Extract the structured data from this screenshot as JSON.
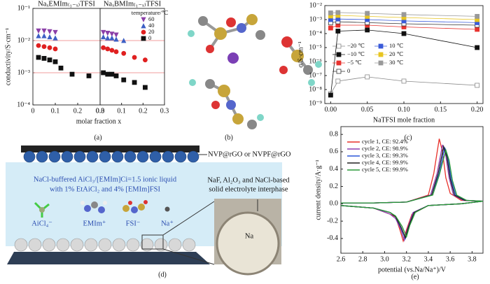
{
  "chart_data": [
    {
      "type": "scatter",
      "panel_label": "(a)",
      "title": "NaₓEMIm₍₁₋ₓ₎TFSI",
      "xlabel": "molar fraction x",
      "ylabel": "conductivity/S·cm⁻¹",
      "log_y": true,
      "grid": true,
      "ylim": [
        0.0001,
        0.1
      ],
      "yticks": [
        {
          "value": 0.0001,
          "label": "10⁻⁴"
        },
        {
          "value": 0.001,
          "label": "10⁻³"
        },
        {
          "value": 0.01,
          "label": "10⁻²"
        },
        {
          "value": 0.1,
          "label": "10⁻¹"
        }
      ],
      "hlines": [
        0.01,
        0.001
      ],
      "hline_color": "#f08080",
      "xlim": [
        0,
        0.3
      ],
      "xticks": [
        0,
        0.1,
        0.2,
        0.3
      ],
      "x": [
        0.025,
        0.05,
        0.075,
        0.1,
        0.125,
        0.175,
        0.25
      ],
      "series": [
        {
          "name": "60",
          "color": "#8b3fa8",
          "marker": "triangle-down",
          "values": [
            0.02,
            0.02,
            0.019,
            0.018,
            null,
            null,
            null
          ]
        },
        {
          "name": "40",
          "color": "#3d5fc4",
          "marker": "triangle-up",
          "values": [
            0.014,
            0.014,
            0.013,
            0.012,
            null,
            null,
            null
          ]
        },
        {
          "name": "20",
          "color": "#e02020",
          "marker": "circle",
          "values": [
            0.007,
            0.0065,
            0.006,
            0.0055,
            null,
            null,
            null
          ]
        },
        {
          "name": "0",
          "color": "#111111",
          "marker": "square",
          "values": [
            0.003,
            0.0028,
            0.0025,
            0.0022,
            0.0014,
            0.0009,
            0.0008
          ]
        }
      ]
    },
    {
      "type": "scatter",
      "title": "NaₓBMIm₍₁₋ₓ₎TFSI",
      "legend_title": "temperature/℃",
      "xlim": [
        0,
        0.3
      ],
      "xticks": [
        {
          "value": 0,
          "label": "0.0"
        },
        0.1,
        0.2,
        0.3
      ],
      "x": [
        0.015,
        0.035,
        0.055,
        0.075,
        0.11,
        0.16,
        0.21
      ],
      "series": [
        {
          "name": "60",
          "color": "#8b3fa8",
          "marker": "triangle-down",
          "values": [
            0.018,
            0.017,
            0.016,
            0.015,
            null,
            null,
            null
          ]
        },
        {
          "name": "40",
          "color": "#3d5fc4",
          "marker": "triangle-up",
          "values": [
            0.013,
            0.012,
            0.012,
            0.011,
            0.01,
            null,
            null
          ]
        },
        {
          "name": "20",
          "color": "#e02020",
          "marker": "circle",
          "values": [
            0.006,
            0.0055,
            0.005,
            0.0045,
            0.004,
            0.003,
            0.0025
          ]
        },
        {
          "name": "0",
          "color": "#111111",
          "marker": "square",
          "values": [
            0.001,
            0.0009,
            0.0009,
            0.0008,
            0.0006,
            0.0005,
            0.00035
          ]
        }
      ]
    },
    {
      "type": "line",
      "panel_label": "(c)",
      "xlabel": "NaTFSI mole fraction",
      "ylabel": "σ/S·cm⁻¹",
      "log_y": true,
      "ylim": [
        1e-09,
        0.01
      ],
      "yticks": [
        {
          "value": 1e-09,
          "label": "10⁻⁹"
        },
        {
          "value": 1e-08,
          "label": "10⁻⁸"
        },
        {
          "value": 1e-07,
          "label": "10⁻⁷"
        },
        {
          "value": 1e-06,
          "label": "10⁻⁶"
        },
        {
          "value": 1e-05,
          "label": "10⁻⁵"
        },
        {
          "value": 0.0001,
          "label": "10⁻⁴"
        },
        {
          "value": 0.001,
          "label": "10⁻³"
        },
        {
          "value": 0.01,
          "label": "10⁻²"
        }
      ],
      "xlim": [
        -0.008,
        0.208
      ],
      "xticks": [
        {
          "value": 0,
          "label": "0.00"
        },
        0.05,
        {
          "value": 0.1,
          "label": "0.10"
        },
        0.15,
        {
          "value": 0.2,
          "label": "0.20"
        }
      ],
      "x": [
        0,
        0.01,
        0.05,
        0.1,
        0.2
      ],
      "legend_columns": 2,
      "series": [
        {
          "name": "−20 ℃",
          "color": "#888888",
          "marker": "square",
          "filled": false,
          "values": [
            5e-09,
            4e-08,
            8e-08,
            4e-08,
            2e-08
          ]
        },
        {
          "name": "−10 ℃",
          "color": "#111111",
          "marker": "square",
          "filled": true,
          "values": [
            4e-09,
            0.00015,
            0.00018,
            0.0001,
            1e-05
          ]
        },
        {
          "name": "−5 ℃",
          "color": "#e8322e",
          "marker": "square",
          "filled": true,
          "values": [
            0.00025,
            0.0004,
            0.0004,
            0.0003,
            0.0002
          ]
        },
        {
          "name": "0",
          "color": "#333333",
          "marker": "square",
          "filled": false,
          "values": [
            0.0006,
            0.0007,
            0.0006,
            0.0005,
            0.0004
          ]
        },
        {
          "name": "10 ℃",
          "color": "#3a5bd9",
          "marker": "square",
          "filled": true,
          "values": [
            0.001,
            0.0011,
            0.001,
            0.0008,
            0.0006
          ]
        },
        {
          "name": "20 ℃",
          "color": "#e8c520",
          "marker": "square",
          "filled": true,
          "values": [
            0.0018,
            0.002,
            0.0017,
            0.0014,
            0.001
          ]
        },
        {
          "name": "30 ℃",
          "color": "#999999",
          "marker": "square",
          "filled": true,
          "values": [
            0.003,
            0.0032,
            0.0028,
            0.0023,
            0.0017
          ]
        }
      ]
    },
    {
      "type": "line",
      "panel_label": "(e)",
      "xlabel": "potential (vs.Na/Na⁺)/V",
      "ylabel": "current density/A·g⁻¹",
      "xlim": [
        2.6,
        3.9
      ],
      "xticks": [
        2.6,
        2.8,
        {
          "value": 3,
          "label": "3.0"
        },
        3.2,
        3.4,
        3.6,
        3.8
      ],
      "ylim": [
        -0.57,
        0.89
      ],
      "yticks": [
        -0.4,
        -0.2,
        {
          "value": 0,
          "label": "0.0"
        },
        0.2,
        0.4,
        0.6,
        0.8
      ],
      "series": [
        {
          "name": "cycle 1, CE: 92.4%",
          "color": "#e8312a",
          "x": [
            2.6,
            2.9,
            3.2,
            3.4,
            3.45,
            3.5,
            3.53,
            3.56,
            3.6,
            3.7,
            3.9,
            3.7,
            3.4,
            3.25,
            3.2,
            3.17,
            3.14,
            3.1,
            3.05,
            2.9,
            2.6
          ],
          "values": [
            0.01,
            0.01,
            0.02,
            0.1,
            0.35,
            0.75,
            0.6,
            0.3,
            0.12,
            0.04,
            0.03,
            0,
            -0.02,
            -0.12,
            -0.3,
            -0.43,
            -0.3,
            -0.15,
            -0.12,
            -0.05,
            -0.02
          ]
        },
        {
          "name": "cycle 2, CE: 98.9%",
          "color": "#8d3fb0",
          "x": [
            2.6,
            2.9,
            3.2,
            3.42,
            3.48,
            3.53,
            3.56,
            3.59,
            3.63,
            3.72,
            3.9,
            3.7,
            3.4,
            3.26,
            3.21,
            3.18,
            3.15,
            3.1,
            3.05,
            2.9,
            2.6
          ],
          "values": [
            0.01,
            0.01,
            0.02,
            0.1,
            0.35,
            0.68,
            0.55,
            0.3,
            0.1,
            0.04,
            0.03,
            0,
            -0.02,
            -0.1,
            -0.28,
            -0.42,
            -0.3,
            -0.17,
            -0.12,
            -0.05,
            -0.02
          ]
        },
        {
          "name": "cycle 3, CE: 99.3%",
          "color": "#2a57d9",
          "x": [
            2.6,
            2.9,
            3.2,
            3.43,
            3.5,
            3.55,
            3.58,
            3.61,
            3.65,
            3.74,
            3.9,
            3.7,
            3.4,
            3.27,
            3.22,
            3.19,
            3.15,
            3.1,
            3.05,
            2.9,
            2.6
          ],
          "values": [
            0.01,
            0.01,
            0.02,
            0.1,
            0.35,
            0.65,
            0.52,
            0.28,
            0.1,
            0.04,
            0.03,
            0,
            -0.02,
            -0.1,
            -0.27,
            -0.4,
            -0.28,
            -0.15,
            -0.1,
            -0.05,
            -0.02
          ]
        },
        {
          "name": "cycle 4, CE: 99.9%",
          "color": "#222222",
          "x": [
            2.6,
            2.9,
            3.2,
            3.43,
            3.49,
            3.54,
            3.57,
            3.6,
            3.64,
            3.73,
            3.9,
            3.7,
            3.4,
            3.27,
            3.22,
            3.19,
            3.15,
            3.1,
            3.05,
            2.9,
            2.6
          ],
          "values": [
            0.01,
            0.01,
            0.02,
            0.1,
            0.35,
            0.66,
            0.54,
            0.29,
            0.1,
            0.04,
            0.03,
            0,
            -0.02,
            -0.1,
            -0.26,
            -0.39,
            -0.27,
            -0.15,
            -0.1,
            -0.05,
            -0.02
          ]
        },
        {
          "name": "cycle 5, CE: 99.9%",
          "color": "#2a9a3a",
          "x": [
            2.6,
            2.9,
            3.2,
            3.44,
            3.5,
            3.56,
            3.59,
            3.62,
            3.66,
            3.75,
            3.9,
            3.7,
            3.4,
            3.28,
            3.23,
            3.2,
            3.16,
            3.1,
            3.05,
            2.9,
            2.6
          ],
          "values": [
            0.01,
            0.01,
            0.02,
            0.1,
            0.33,
            0.62,
            0.5,
            0.27,
            0.1,
            0.04,
            0.03,
            0,
            -0.02,
            -0.1,
            -0.25,
            -0.38,
            -0.26,
            -0.14,
            -0.1,
            -0.05,
            -0.02
          ]
        }
      ]
    }
  ],
  "panel_b": {
    "label": "(b)"
  },
  "panel_d": {
    "label": "(d)",
    "electrode": "NVP@rGO or NVPF@rGO",
    "electrolyte": [
      "NaCl-buffered AiCl₃/[EMIm]Ci=1.5 ionic liquid",
      "with 1% EtAiCl₂ and 4% [EMIm]FSI"
    ],
    "species": [
      "AiCl₄⁻",
      "EMIm⁺",
      "FSI⁻",
      "Na⁺"
    ],
    "interphase": [
      "NaF, Al₂O₃ and NaCl-based",
      "solid electrolyte interphase"
    ],
    "anode": "Na"
  }
}
